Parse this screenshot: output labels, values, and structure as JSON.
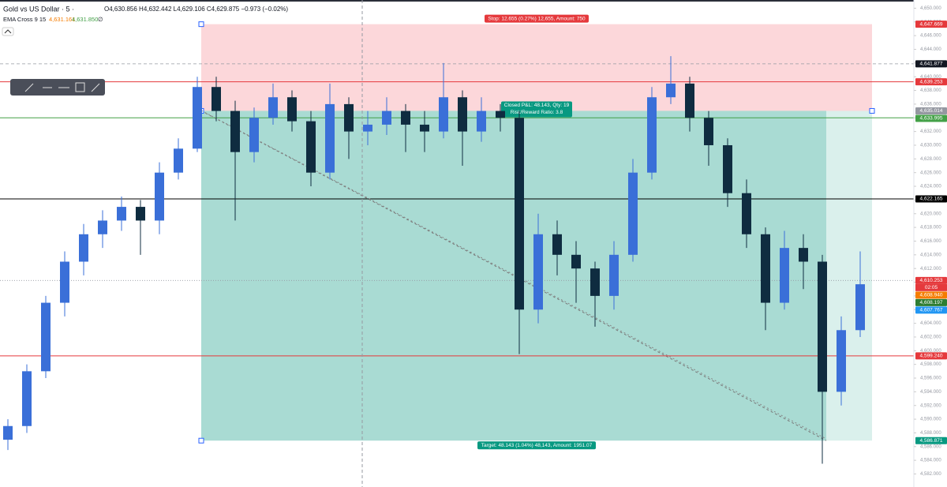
{
  "chart_data": {
    "type": "candlestick",
    "title": "Gold vs US Dollar · 5 ·",
    "ohlc_line": "O4,630.856 H4,632.442 L4,629.106 C4,629.875 −0.973 (−0.02%)",
    "indicator": {
      "name": "EMA Cross 9 15",
      "fast": "4,631.161",
      "slow": "4,631.850",
      "extra": "∅"
    },
    "up_color": "#3a6fd8",
    "down_color": "#0f2c40",
    "open": [
      4587,
      4589,
      4597,
      4607,
      4613,
      4617,
      4619,
      4621,
      4619,
      4626,
      4629.5,
      4638.5,
      4635,
      4629,
      4634,
      4637,
      4633.5,
      4626,
      4636,
      4632,
      4633,
      4635,
      4633,
      4632,
      4637,
      4632,
      4635,
      4634,
      4606,
      4617,
      4614,
      4612,
      4608,
      4614,
      4626,
      4637,
      4639,
      4634,
      4630,
      4623,
      4617,
      4607,
      4615,
      4613,
      4594,
      4603
    ],
    "high": [
      4590,
      4598,
      4608,
      4614.5,
      4618.5,
      4620.5,
      4622.5,
      4622,
      4627.5,
      4631,
      4640,
      4640,
      4636.5,
      4635.5,
      4639,
      4638,
      4635,
      4639,
      4637,
      4635,
      4637,
      4636,
      4635,
      4642,
      4638,
      4637,
      4636,
      4635,
      4620,
      4619,
      4616,
      4613,
      4616,
      4628,
      4638.5,
      4643,
      4640,
      4635,
      4631,
      4625,
      4618,
      4617.5,
      4617,
      4614,
      4605,
      4614.5
    ],
    "low": [
      4585.5,
      4588,
      4596,
      4605,
      4611,
      4615,
      4617.5,
      4614,
      4617,
      4625,
      4629,
      4633.5,
      4619,
      4627.5,
      4633,
      4632,
      4624,
      4625,
      4628,
      4630,
      4631.5,
      4629,
      4629,
      4631,
      4627,
      4630.5,
      4632,
      4599.5,
      4604,
      4611,
      4607,
      4603.5,
      4606,
      4613,
      4625,
      4636,
      4632,
      4627,
      4621,
      4615,
      4603,
      4606,
      4609,
      4583.5,
      4592,
      4602
    ],
    "close": [
      4589,
      4597,
      4607,
      4613,
      4617,
      4619,
      4621,
      4619,
      4626,
      4629.5,
      4638.5,
      4635,
      4629,
      4634,
      4637,
      4633.5,
      4626,
      4636,
      4632,
      4633,
      4635,
      4633,
      4632,
      4637,
      4632,
      4635,
      4634,
      4606,
      4617,
      4614,
      4612,
      4608,
      4614,
      4626,
      4637,
      4639,
      4634,
      4630,
      4623,
      4617,
      4607,
      4615,
      4613,
      4594,
      4603,
      4609.7
    ],
    "ylim": [
      4580.1,
      4651.2
    ],
    "yticks": [
      {
        "value": 4582,
        "label": "4,582.000"
      },
      {
        "value": 4584,
        "label": "4,584.000"
      },
      {
        "value": 4586,
        "label": "4,586.000"
      },
      {
        "value": 4588,
        "label": "4,588.000"
      },
      {
        "value": 4590,
        "label": "4,590.000"
      },
      {
        "value": 4592,
        "label": "4,592.000"
      },
      {
        "value": 4594,
        "label": "4,594.000"
      },
      {
        "value": 4596,
        "label": "4,596.000"
      },
      {
        "value": 4598,
        "label": "4,598.000"
      },
      {
        "value": 4600,
        "label": "4,600.000"
      },
      {
        "value": 4602,
        "label": "4,602.000"
      },
      {
        "value": 4604,
        "label": "4,604.000"
      },
      {
        "value": 4606,
        "label": "4,606.000"
      },
      {
        "value": 4608,
        "label": "4,608.000"
      },
      {
        "value": 4610,
        "label": "4,610.000"
      },
      {
        "value": 4612,
        "label": "4,612.000"
      },
      {
        "value": 4614,
        "label": "4,614.000"
      },
      {
        "value": 4616,
        "label": "4,616.000"
      },
      {
        "value": 4618,
        "label": "4,618.000"
      },
      {
        "value": 4620,
        "label": "4,620.000"
      },
      {
        "value": 4622,
        "label": "4,622.000"
      },
      {
        "value": 4624,
        "label": "4,624.000"
      },
      {
        "value": 4626,
        "label": "4,626.000"
      },
      {
        "value": 4628,
        "label": "4,628.000"
      },
      {
        "value": 4630,
        "label": "4,630.000"
      },
      {
        "value": 4632,
        "label": "4,632.000"
      },
      {
        "value": 4634,
        "label": "4,634.000"
      },
      {
        "value": 4636,
        "label": "4,636.000"
      },
      {
        "value": 4638,
        "label": "4,638.000"
      },
      {
        "value": 4640,
        "label": "4,640.000"
      },
      {
        "value": 4642,
        "label": "4,642.000"
      },
      {
        "value": 4644,
        "label": "4,644.000"
      },
      {
        "value": 4646,
        "label": "4,646.000"
      },
      {
        "value": 4648,
        "label": "4,648.000"
      },
      {
        "value": 4650,
        "label": "4,650.000"
      }
    ],
    "levels": [
      {
        "value": 4641.877,
        "label": "4,641.877",
        "color": "#131722",
        "style": "dashed"
      },
      {
        "value": 4639.253,
        "label": "4,639.253",
        "color": "#e5393c",
        "style": "line"
      },
      {
        "value": 4633.995,
        "label": "4,633.995",
        "color": "#43a047",
        "style": "line"
      },
      {
        "value": 4622.165,
        "label": "4,622.165",
        "color": "#000000",
        "style": "line"
      },
      {
        "value": 4610.253,
        "label": "4,610.253",
        "color": "#e5393c",
        "style": "dotted"
      },
      {
        "value": 4608.94,
        "label": "4,608.940",
        "color": "#f57c00",
        "style": "tag"
      },
      {
        "value": 4608.197,
        "label": "4,608.197",
        "color": "#2e7d32",
        "style": "tag"
      },
      {
        "value": 4607.767,
        "label": "4,607.767",
        "color": "#2196f3",
        "style": "tag"
      },
      {
        "value": 4599.24,
        "label": "4,599.240",
        "color": "#e5393c",
        "style": "line"
      }
    ],
    "countdown": "02:05",
    "position": {
      "stop": {
        "value": 4647.669,
        "label": "4,647.669"
      },
      "entry": {
        "value": 4635.014,
        "label": "4,635.014"
      },
      "target": {
        "value": 4586.871,
        "label": "4,586.871"
      },
      "stop_text": "Stop: 12.655 (0.27%) 12,655, Amount: 750",
      "pnl_text": "Closed P&L: 48.143, Qty: 19",
      "rr_text": "Risk/Reward Ratio: 3.8",
      "target_text": "Target: 48.143 (1.04%) 48,143, Amount: 1951.07"
    }
  }
}
